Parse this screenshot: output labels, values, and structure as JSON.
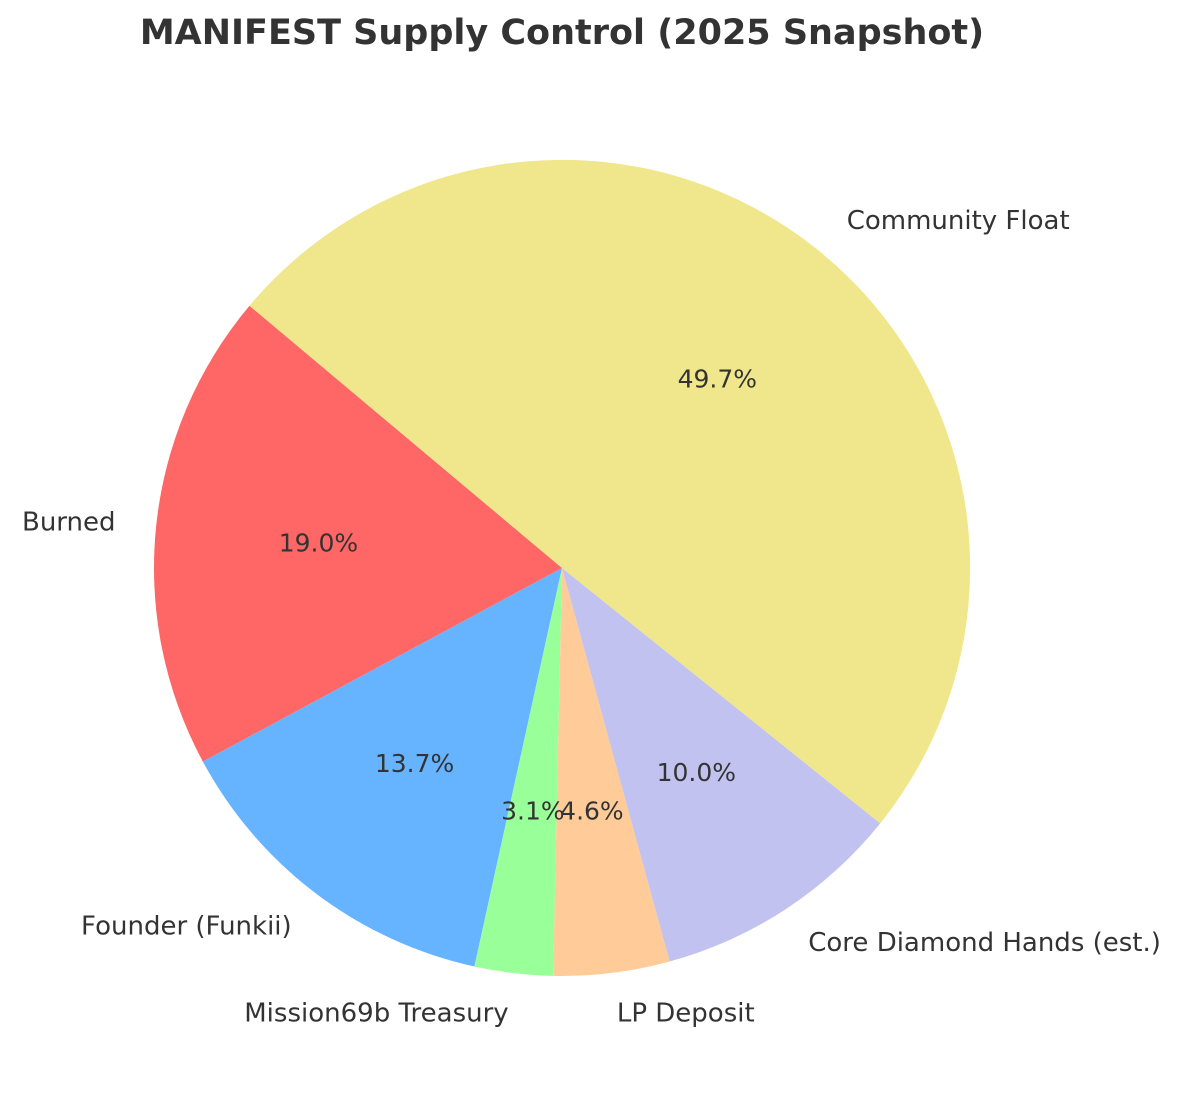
{
  "chart_data": {
    "type": "pie",
    "title": "MANIFEST Supply Control (2025 Snapshot)",
    "start_angle_deg": 140,
    "direction": "counterclockwise",
    "slices": [
      {
        "label": "Burned",
        "value": 19.0,
        "pct_label": "19.0%",
        "color": "#ff6666"
      },
      {
        "label": "Founder (Funkii)",
        "value": 13.7,
        "pct_label": "13.7%",
        "color": "#66b3ff"
      },
      {
        "label": "Mission69b Treasury",
        "value": 3.1,
        "pct_label": "3.1%",
        "color": "#99ff99"
      },
      {
        "label": "LP Deposit",
        "value": 4.6,
        "pct_label": "4.6%",
        "color": "#ffcc99"
      },
      {
        "label": "Core Diamond Hands (est.)",
        "value": 10.0,
        "pct_label": "10.0%",
        "color": "#c2c2f0"
      },
      {
        "label": "Community Float",
        "value": 49.7,
        "pct_label": "49.7%",
        "color": "#f0e68c"
      }
    ]
  }
}
